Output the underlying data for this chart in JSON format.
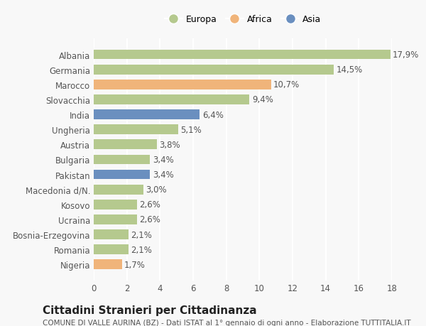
{
  "categories": [
    "Albania",
    "Germania",
    "Marocco",
    "Slovacchia",
    "India",
    "Ungheria",
    "Austria",
    "Bulgaria",
    "Pakistan",
    "Macedonia d/N.",
    "Kosovo",
    "Ucraina",
    "Bosnia-Erzegovina",
    "Romania",
    "Nigeria"
  ],
  "values": [
    17.9,
    14.5,
    10.7,
    9.4,
    6.4,
    5.1,
    3.8,
    3.4,
    3.4,
    3.0,
    2.6,
    2.6,
    2.1,
    2.1,
    1.7
  ],
  "labels": [
    "17,9%",
    "14,5%",
    "10,7%",
    "9,4%",
    "6,4%",
    "5,1%",
    "3,8%",
    "3,4%",
    "3,4%",
    "3,0%",
    "2,6%",
    "2,6%",
    "2,1%",
    "2,1%",
    "1,7%"
  ],
  "continents": [
    "Europa",
    "Europa",
    "Africa",
    "Europa",
    "Asia",
    "Europa",
    "Europa",
    "Europa",
    "Asia",
    "Europa",
    "Europa",
    "Europa",
    "Europa",
    "Europa",
    "Africa"
  ],
  "color_map": {
    "Europa": "#b5c98e",
    "Africa": "#f0b47a",
    "Asia": "#6a8fbf"
  },
  "legend_order": [
    "Europa",
    "Africa",
    "Asia"
  ],
  "legend_colors": [
    "#b5c98e",
    "#f0b47a",
    "#6a8fbf"
  ],
  "xlim": [
    0,
    18
  ],
  "xticks": [
    0,
    2,
    4,
    6,
    8,
    10,
    12,
    14,
    16,
    18
  ],
  "title": "Cittadini Stranieri per Cittadinanza",
  "subtitle": "COMUNE DI VALLE AURINA (BZ) - Dati ISTAT al 1° gennaio di ogni anno - Elaborazione TUTTITALIA.IT",
  "background_color": "#f8f8f8",
  "grid_color": "#ffffff",
  "bar_height": 0.65,
  "label_fontsize": 8.5,
  "tick_fontsize": 8.5,
  "title_fontsize": 11,
  "subtitle_fontsize": 7.5
}
